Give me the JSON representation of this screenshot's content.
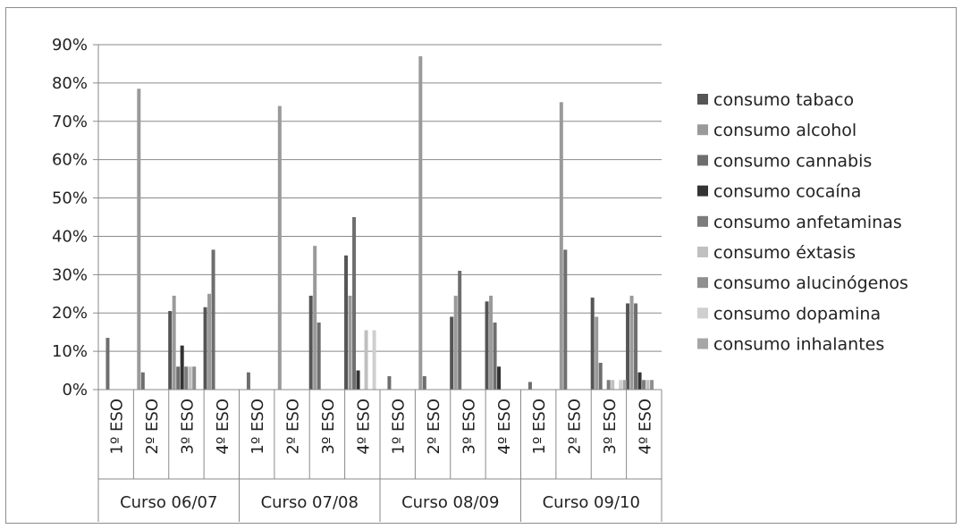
{
  "chart_data": {
    "type": "bar",
    "title": "",
    "xlabel": "",
    "ylabel": "",
    "ylim": [
      0,
      90
    ],
    "yticks": [
      "0%",
      "10%",
      "20%",
      "30%",
      "40%",
      "50%",
      "60%",
      "70%",
      "80%",
      "90%"
    ],
    "grid": true,
    "legend_position": "right",
    "groups": [
      "Curso 06/07",
      "Curso 07/08",
      "Curso 08/09",
      "Curso 09/10"
    ],
    "categories": [
      "1º ESO",
      "2º ESO",
      "3º ESO",
      "4º ESO",
      "1º ESO",
      "2º ESO",
      "3º ESO",
      "4º ESO",
      "1º ESO",
      "2º ESO",
      "3º ESO",
      "4º ESO",
      "1º ESO",
      "2º ESO",
      "3º ESO",
      "4º ESO"
    ],
    "series": [
      {
        "name": "consumo tabaco",
        "color": "#555555",
        "values": [
          0,
          0,
          20.5,
          21.5,
          0,
          0,
          24.5,
          35,
          0,
          0,
          19,
          23,
          0,
          0,
          24,
          22.5
        ]
      },
      {
        "name": "consumo alcohol",
        "color": "#9a9a9a",
        "values": [
          0,
          78.5,
          24.5,
          25,
          0,
          74,
          37.5,
          24.5,
          0,
          87,
          24.5,
          24.5,
          0,
          75,
          19,
          24.5
        ]
      },
      {
        "name": "consumo cannabis",
        "color": "#6e6e6e",
        "values": [
          13.5,
          4.5,
          6,
          36.5,
          4.5,
          0,
          17.5,
          45,
          3.5,
          3.5,
          31,
          17.5,
          2,
          36.5,
          7,
          22.5
        ]
      },
      {
        "name": "consumo cocaína",
        "color": "#333333",
        "values": [
          0,
          0,
          11.5,
          0,
          0,
          0,
          0,
          5,
          0,
          0,
          0,
          6,
          0,
          0,
          0,
          4.5
        ]
      },
      {
        "name": "consumo anfetaminas",
        "color": "#7c7c7c",
        "values": [
          0,
          0,
          6,
          0,
          0,
          0,
          0,
          0,
          0,
          0,
          0,
          0,
          0,
          0,
          2.5,
          2.5
        ]
      },
      {
        "name": "consumo éxtasis",
        "color": "#c0c0c0",
        "values": [
          0,
          0,
          6,
          0,
          0,
          0,
          0,
          15.5,
          0,
          0,
          0,
          0,
          0,
          0,
          2.5,
          2.5
        ]
      },
      {
        "name": "consumo alucinógenos",
        "color": "#8f8f8f",
        "values": [
          0,
          0,
          6,
          0,
          0,
          0,
          0,
          0,
          0,
          0,
          0,
          0,
          0,
          0,
          0,
          2.5
        ]
      },
      {
        "name": "consumo dopamina",
        "color": "#cfcfcf",
        "values": [
          0,
          0,
          0,
          0,
          0,
          0,
          0,
          15.5,
          0,
          0,
          0,
          0,
          0,
          0,
          2.5,
          0
        ]
      },
      {
        "name": "consumo inhalantes",
        "color": "#a6a6a6",
        "values": [
          0,
          0,
          0,
          0,
          0,
          0,
          0,
          0,
          0,
          0,
          0,
          0,
          0,
          0,
          2.5,
          0
        ]
      }
    ]
  }
}
